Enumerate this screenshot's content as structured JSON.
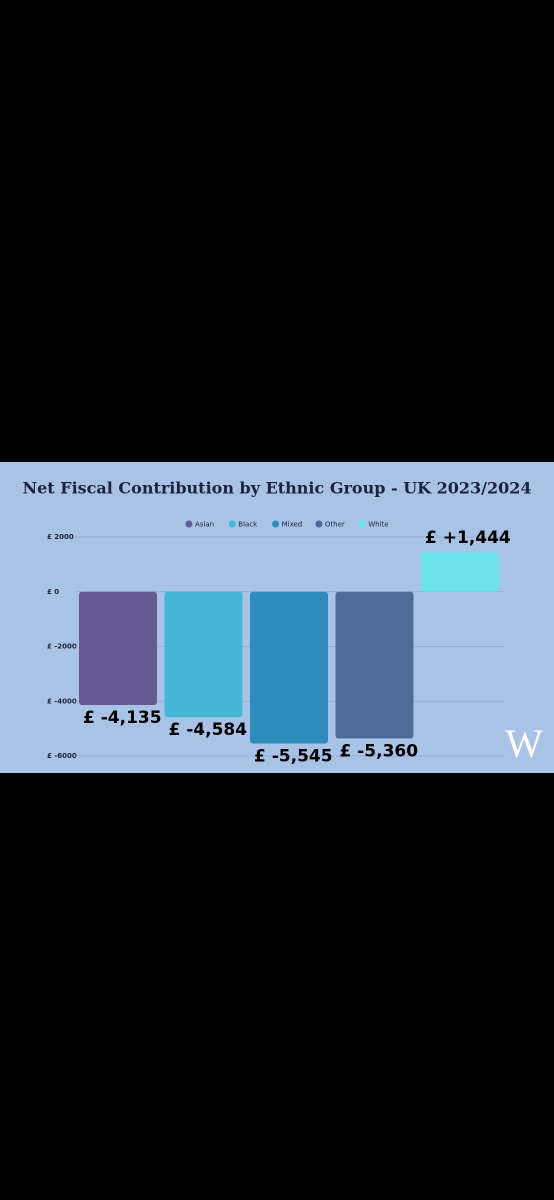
{
  "chart_data": {
    "type": "bar",
    "title": "Net Fiscal Contribution by Ethnic Group - UK 2023/2024",
    "categories": [
      "Asian",
      "Black",
      "Mixed",
      "Other",
      "White"
    ],
    "values": [
      -4135,
      -4584,
      -5545,
      -5360,
      1444
    ],
    "value_labels": [
      "£ -4,135",
      "£ -4,584",
      "£ -5,545",
      "£ -5,360",
      "£ +1,444"
    ],
    "colors": [
      "#665a92",
      "#45b8d8",
      "#2e8bbb",
      "#4e6b98",
      "#6ce3ea"
    ],
    "ylim": [
      -6000,
      2000
    ],
    "yticks": [
      {
        "value": -6000,
        "label": "£ -6000"
      },
      {
        "value": -4000,
        "label": "£ -4000"
      },
      {
        "value": -2000,
        "label": "£ -2000"
      },
      {
        "value": 0,
        "label": "£ 0"
      },
      {
        "value": 2000,
        "label": "£ 2000"
      }
    ],
    "grid": true,
    "legend": "top",
    "logo": "W"
  }
}
